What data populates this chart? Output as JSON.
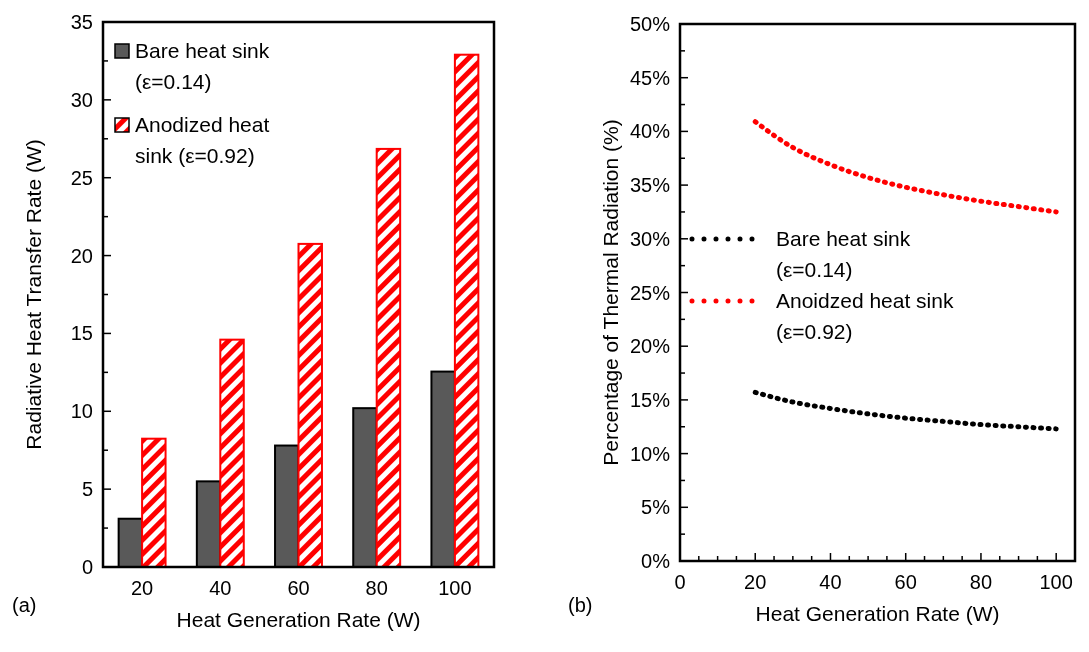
{
  "chart_data": [
    {
      "type": "bar",
      "xlabel": "Heat Generation Rate (W)",
      "ylabel": "Radiative Heat Transfer Rate (W)",
      "categories": [
        "20",
        "40",
        "60",
        "80",
        "100"
      ],
      "series": [
        {
          "name": "Bare heat sink (ε=0.14)",
          "color": "#595959",
          "values": [
            3.1,
            5.5,
            7.8,
            10.2,
            12.55
          ]
        },
        {
          "name": "Anodized heat sink (ε=0.92)",
          "color": "#ff0000",
          "values": [
            8.24,
            14.6,
            20.75,
            26.85,
            32.9
          ]
        }
      ],
      "ylim": [
        0,
        35
      ],
      "yticks": [
        0,
        {
          "value": 2.5,
          "label": null
        },
        5,
        {
          "value": 7.5,
          "label": null
        },
        10,
        {
          "value": 12.5,
          "label": null
        },
        15,
        {
          "value": 17.5,
          "label": null
        },
        20,
        {
          "value": 22.5,
          "label": null
        },
        25,
        {
          "value": 27.5,
          "label": null
        },
        30,
        {
          "value": 32.5,
          "label": null
        },
        35
      ],
      "legend": "top left",
      "annotations": [
        "(a)"
      ]
    },
    {
      "type": "line",
      "xlabel": "Heat Generation Rate (W)",
      "ylabel": "Percentage of Thermal Radiation (%)",
      "x": [
        20,
        30,
        40,
        50,
        60,
        70,
        80,
        90,
        100
      ],
      "series": [
        {
          "name": "Bare heat sink (ε=0.14)",
          "color": "#000000",
          "values": [
            15.7,
            14.8,
            14.2,
            13.7,
            13.3,
            13.0,
            12.7,
            12.5,
            12.3
          ]
        },
        {
          "name": "Anoidzed heat sink (ε=0.92)",
          "color": "#ff0000",
          "values": [
            40.9,
            38.5,
            36.9,
            35.7,
            34.8,
            34.1,
            33.5,
            33.0,
            32.5
          ]
        }
      ],
      "xlim": [
        0,
        105
      ],
      "xticks": [
        0,
        {
          "value": 5,
          "label": null
        },
        {
          "value": 10,
          "label": null
        },
        {
          "value": 15,
          "label": null
        },
        20,
        {
          "value": 25,
          "label": null
        },
        {
          "value": 30,
          "label": null
        },
        {
          "value": 35,
          "label": null
        },
        40,
        {
          "value": 45,
          "label": null
        },
        {
          "value": 50,
          "label": null
        },
        {
          "value": 55,
          "label": null
        },
        60,
        {
          "value": 65,
          "label": null
        },
        {
          "value": 70,
          "label": null
        },
        {
          "value": 75,
          "label": null
        },
        80,
        {
          "value": 85,
          "label": null
        },
        {
          "value": 90,
          "label": null
        },
        {
          "value": 95,
          "label": null
        },
        100
      ],
      "ylim": [
        0,
        50
      ],
      "yticks": [
        {
          "value": 0,
          "label": "0%"
        },
        {
          "value": 2.5,
          "label": null
        },
        {
          "value": 5,
          "label": "5%"
        },
        {
          "value": 7.5,
          "label": null
        },
        {
          "value": 10,
          "label": "10%"
        },
        {
          "value": 12.5,
          "label": null
        },
        {
          "value": 15,
          "label": "15%"
        },
        {
          "value": 17.5,
          "label": null
        },
        {
          "value": 20,
          "label": "20%"
        },
        {
          "value": 22.5,
          "label": null
        },
        {
          "value": 25,
          "label": "25%"
        },
        {
          "value": 27.5,
          "label": null
        },
        {
          "value": 30,
          "label": "30%"
        },
        {
          "value": 32.5,
          "label": null
        },
        {
          "value": 35,
          "label": "35%"
        },
        {
          "value": 37.5,
          "label": null
        },
        {
          "value": 40,
          "label": "40%"
        },
        {
          "value": 42.5,
          "label": null
        },
        {
          "value": 45,
          "label": "45%"
        },
        {
          "value": 47.5,
          "label": null
        },
        {
          "value": 50,
          "label": "50%"
        }
      ],
      "marker": "none",
      "line_style": "dotted",
      "legend": "left",
      "annotations": [
        "(b)"
      ]
    }
  ]
}
